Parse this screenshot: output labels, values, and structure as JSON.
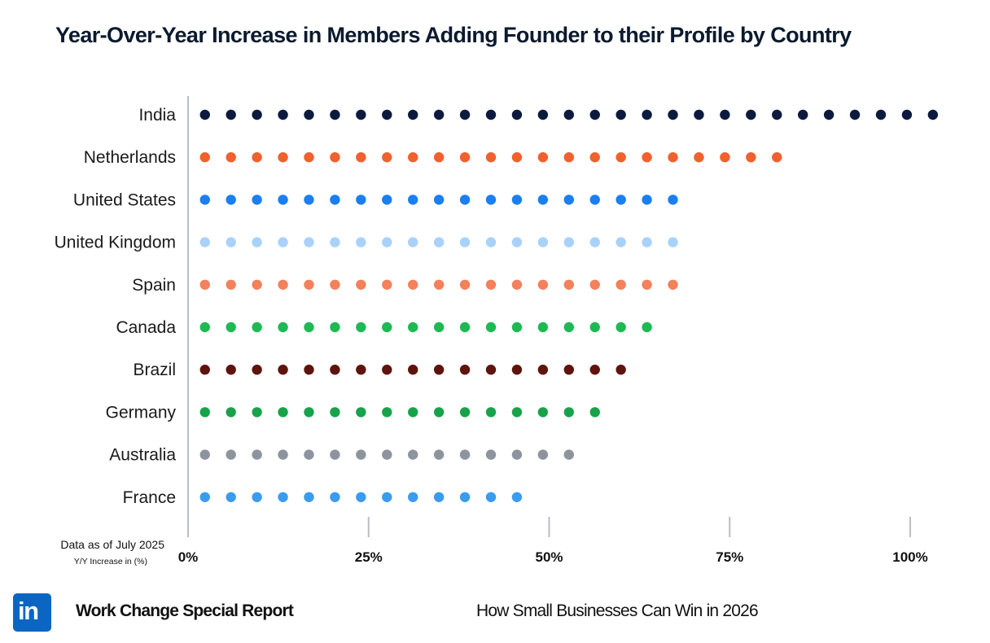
{
  "header": {
    "title": "Year-Over-Year Increase in Members Adding Founder to their Profile by Country"
  },
  "footer": {
    "logo_text": "in",
    "report_title": "Work Change Special Report",
    "subtitle": "How Small Businesses Can Win in 2026"
  },
  "chart_data": {
    "type": "dot",
    "title": "Year-Over-Year Increase in Members Adding Founder to their Profile by Country",
    "notes": [
      "Data as of July 2025",
      "Y/Y Increase in (%)"
    ],
    "xlabel": "Y/Y Increase in (%)",
    "xlim": [
      0,
      100
    ],
    "ticks": [
      {
        "value": 0,
        "label": "0%"
      },
      {
        "value": 25,
        "label": "25%"
      },
      {
        "value": 50,
        "label": "50%"
      },
      {
        "value": 75,
        "label": "75%"
      },
      {
        "value": 100,
        "label": "100%"
      }
    ],
    "dot_step": 3.6,
    "categories": [
      "India",
      "Netherlands",
      "United States",
      "United Kingdom",
      "Spain",
      "Canada",
      "Brazil",
      "Germany",
      "Australia",
      "France"
    ],
    "values": [
      104,
      83,
      68,
      68,
      68,
      65,
      61,
      57,
      54,
      47
    ],
    "dot_counts": [
      29,
      23,
      19,
      19,
      19,
      18,
      17,
      16,
      15,
      13
    ],
    "colors": [
      "#0c1b3d",
      "#f0612d",
      "#1a7ff0",
      "#a8d2fb",
      "#f5805c",
      "#1fb954",
      "#5e140c",
      "#18a34a",
      "#8d949d",
      "#3b9bf0"
    ]
  }
}
